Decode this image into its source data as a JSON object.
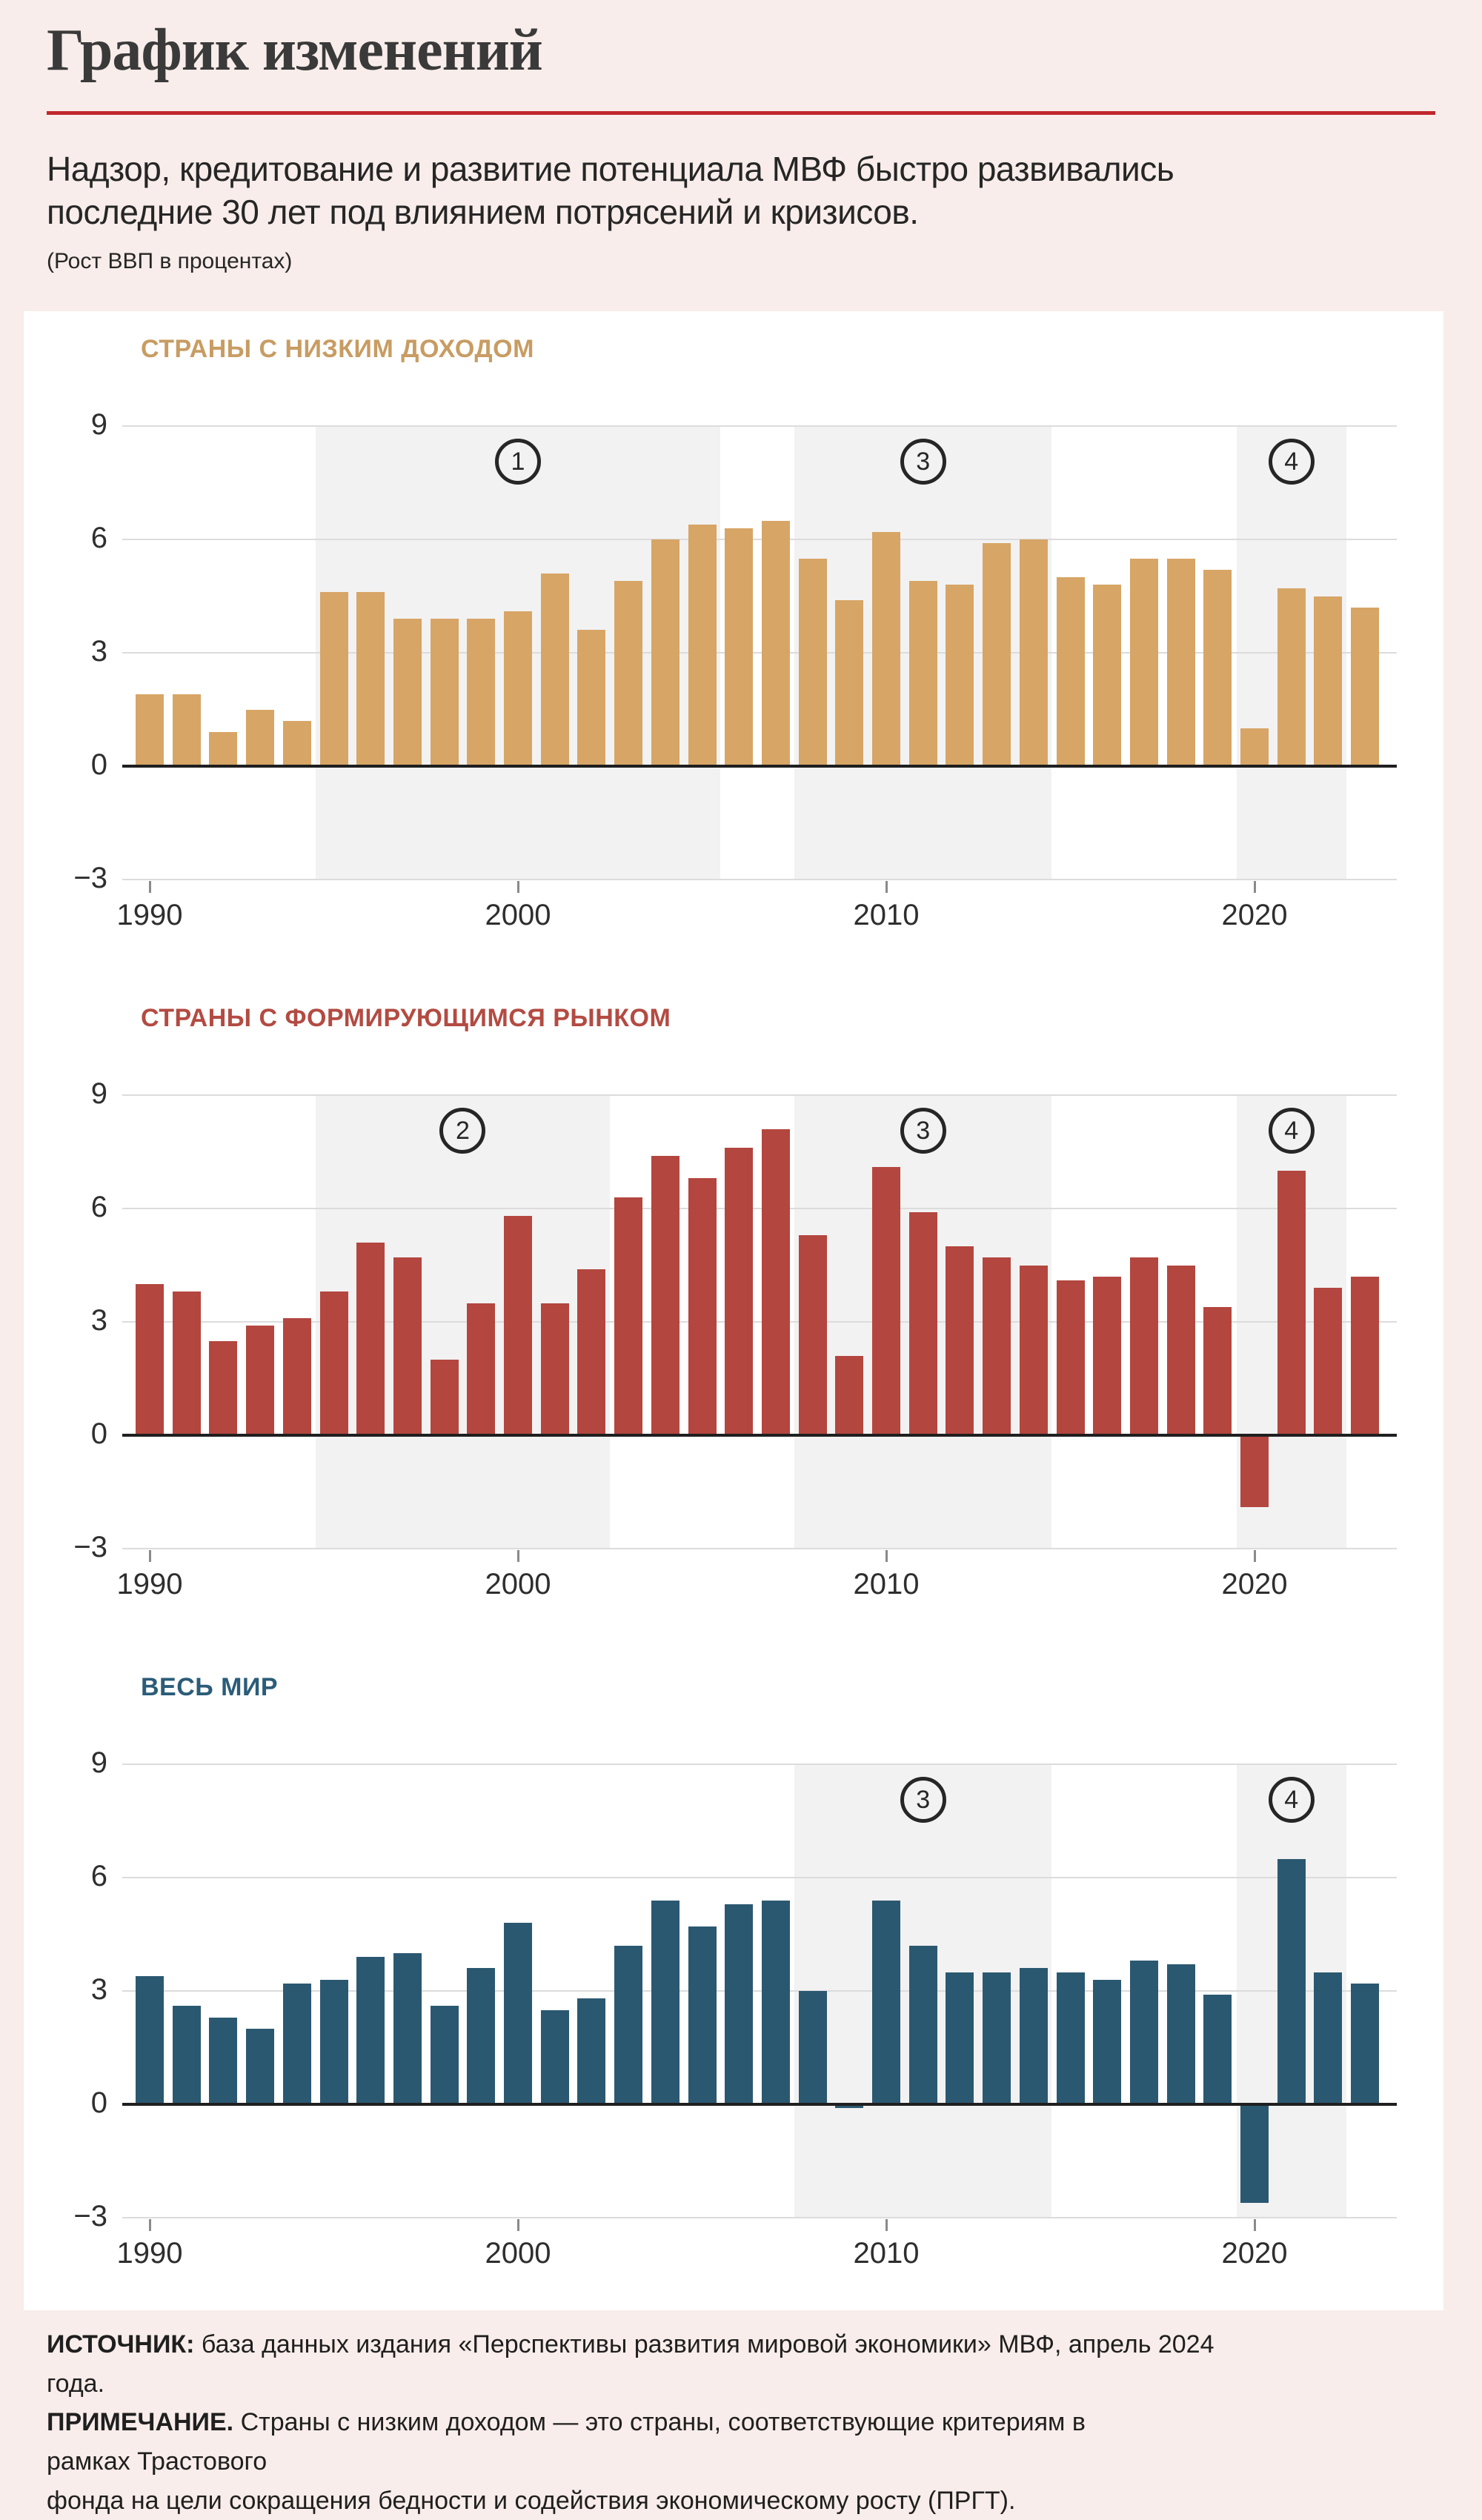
{
  "header": {
    "title": "График изменений",
    "rule_color": "#c0272d",
    "subtitle_lines": [
      "Надзор, кредитование и развитие потенциала МВФ быстро развивались",
      "последние 30 лет под влиянием потрясений и кризисов."
    ],
    "unit_note": "(Рост ВВП в процентах)"
  },
  "footer": {
    "source_label": "ИСТОЧНИК:",
    "source_text": " база данных издания «Перспективы развития мировой экономики» МВФ, апрель 2024 года.",
    "note_label": "ПРИМЕЧАНИЕ.",
    "note_lines": [
      " Страны с низким доходом — это страны, соответствующие критериям в рамках Трастового",
      "фонда на цели сокращения бедности и содействия экономическому росту (ПРГТ)."
    ]
  },
  "colors": {
    "page_background": "#f8edea",
    "panel_background": "#ffffff",
    "band_gray": "#f2f2f2",
    "gridline": "#dcdcdc",
    "zero_line": "#1f1f1f",
    "axis_text": "#2e2e2e",
    "circle_stroke": "#262626"
  },
  "chart_data": [
    {
      "type": "bar",
      "title": "СТРАНЫ С НИЗКИМ ДОХОДОМ",
      "title_color": "#c89c62",
      "bar_color": "#d7a566",
      "xlabel": "",
      "ylabel": "Рост ВВП в процентах",
      "ylim": [
        -3,
        9
      ],
      "yticks": [
        "9",
        "6",
        "3",
        "0",
        "−3"
      ],
      "ytick_values": [
        9,
        6,
        3,
        0,
        -3
      ],
      "xtick_labels": [
        "1990",
        "2000",
        "2010",
        "2020"
      ],
      "xtick_years": [
        1990,
        2000,
        2010,
        2020
      ],
      "grid": true,
      "legend": "none",
      "categories": [
        1990,
        1991,
        1992,
        1993,
        1994,
        1995,
        1996,
        1997,
        1998,
        1999,
        2000,
        2001,
        2002,
        2003,
        2004,
        2005,
        2006,
        2007,
        2008,
        2009,
        2010,
        2011,
        2012,
        2013,
        2014,
        2015,
        2016,
        2017,
        2018,
        2019,
        2020,
        2021,
        2022,
        2023
      ],
      "values": [
        1.9,
        1.9,
        0.9,
        1.5,
        1.2,
        4.6,
        4.6,
        3.9,
        3.9,
        3.9,
        4.1,
        5.1,
        3.6,
        4.9,
        6.0,
        6.4,
        6.3,
        6.5,
        5.5,
        4.4,
        6.2,
        4.9,
        4.8,
        5.9,
        6.0,
        5.0,
        4.8,
        5.5,
        5.5,
        5.2,
        1.0,
        4.7,
        4.5,
        4.2
      ],
      "shaded_bands": [
        {
          "label": "1",
          "from_year": 1995,
          "to_year": 2005
        },
        {
          "label": "3",
          "from_year": 2008,
          "to_year": 2014
        },
        {
          "label": "4",
          "from_year": 2020,
          "to_year": 2022
        }
      ]
    },
    {
      "type": "bar",
      "title": "СТРАНЫ С ФОРМИРУЮЩИМСЯ РЫНКОМ",
      "title_color": "#b34b42",
      "bar_color": "#b3463f",
      "xlabel": "",
      "ylabel": "Рост ВВП в процентах",
      "ylim": [
        -3,
        9
      ],
      "yticks": [
        "9",
        "6",
        "3",
        "0",
        "−3"
      ],
      "ytick_values": [
        9,
        6,
        3,
        0,
        -3
      ],
      "xtick_labels": [
        "1990",
        "2000",
        "2010",
        "2020"
      ],
      "xtick_years": [
        1990,
        2000,
        2010,
        2020
      ],
      "grid": true,
      "legend": "none",
      "categories": [
        1990,
        1991,
        1992,
        1993,
        1994,
        1995,
        1996,
        1997,
        1998,
        1999,
        2000,
        2001,
        2002,
        2003,
        2004,
        2005,
        2006,
        2007,
        2008,
        2009,
        2010,
        2011,
        2012,
        2013,
        2014,
        2015,
        2016,
        2017,
        2018,
        2019,
        2020,
        2021,
        2022,
        2023
      ],
      "values": [
        4.0,
        3.8,
        2.5,
        2.9,
        3.1,
        3.8,
        5.1,
        4.7,
        2.0,
        3.5,
        5.8,
        3.5,
        4.4,
        6.3,
        7.4,
        6.8,
        7.6,
        8.1,
        5.3,
        2.1,
        7.1,
        5.9,
        5.0,
        4.7,
        4.5,
        4.1,
        4.2,
        4.7,
        4.5,
        3.4,
        -1.9,
        7.0,
        3.9,
        4.2
      ],
      "shaded_bands": [
        {
          "label": "2",
          "from_year": 1995,
          "to_year": 2002
        },
        {
          "label": "3",
          "from_year": 2008,
          "to_year": 2014
        },
        {
          "label": "4",
          "from_year": 2020,
          "to_year": 2022
        }
      ]
    },
    {
      "type": "bar",
      "title": "ВЕСЬ МИР",
      "title_color": "#2b5c78",
      "bar_color": "#2b5871",
      "xlabel": "",
      "ylabel": "Рост ВВП в процентах",
      "ylim": [
        -3,
        9
      ],
      "yticks": [
        "9",
        "6",
        "3",
        "0",
        "−3"
      ],
      "ytick_values": [
        9,
        6,
        3,
        0,
        -3
      ],
      "xtick_labels": [
        "1990",
        "2000",
        "2010",
        "2020"
      ],
      "xtick_years": [
        1990,
        2000,
        2010,
        2020
      ],
      "grid": true,
      "legend": "none",
      "categories": [
        1990,
        1991,
        1992,
        1993,
        1994,
        1995,
        1996,
        1997,
        1998,
        1999,
        2000,
        2001,
        2002,
        2003,
        2004,
        2005,
        2006,
        2007,
        2008,
        2009,
        2010,
        2011,
        2012,
        2013,
        2014,
        2015,
        2016,
        2017,
        2018,
        2019,
        2020,
        2021,
        2022,
        2023
      ],
      "values": [
        3.4,
        2.6,
        2.3,
        2.0,
        3.2,
        3.3,
        3.9,
        4.0,
        2.6,
        3.6,
        4.8,
        2.5,
        2.8,
        4.2,
        5.4,
        4.7,
        5.3,
        5.4,
        3.0,
        -0.1,
        5.4,
        4.2,
        3.5,
        3.5,
        3.6,
        3.5,
        3.3,
        3.8,
        3.7,
        2.9,
        -2.6,
        6.5,
        3.5,
        3.2
      ],
      "shaded_bands": [
        {
          "label": "3",
          "from_year": 2008,
          "to_year": 2014
        },
        {
          "label": "4",
          "from_year": 2020,
          "to_year": 2022
        }
      ]
    }
  ]
}
